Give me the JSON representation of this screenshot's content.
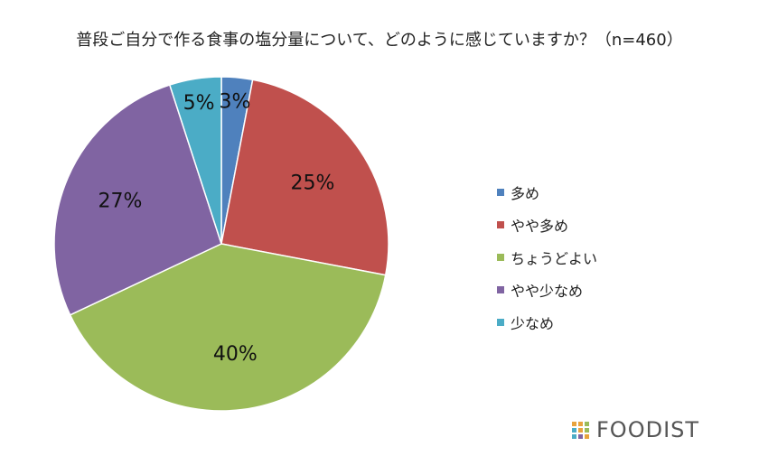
{
  "chart_data": {
    "type": "pie",
    "title": "普段ご自分で作る食事の塩分量について、どのように感じていますか？（n=460）",
    "categories": [
      "多め",
      "やや多め",
      "ちょうどよい",
      "やや少なめ",
      "少なめ"
    ],
    "values": [
      3,
      25,
      40,
      27,
      5
    ],
    "data_labels": [
      "3%",
      "25%",
      "40%",
      "27%",
      "5%"
    ],
    "colors": [
      "#4f81bd",
      "#c0504d",
      "#9bbb59",
      "#8064a2",
      "#4bacc6"
    ],
    "legend_position": "right"
  },
  "brand": {
    "text": "FOODIST",
    "icon": "grid-dots-icon",
    "dot_colors": [
      "#e8a33d",
      "#e8a33d",
      "#9bbb59",
      "#4bacc6",
      "#e8a33d",
      "#9bbb59",
      "#4bacc6",
      "#8064a2",
      "#e8a33d"
    ]
  }
}
